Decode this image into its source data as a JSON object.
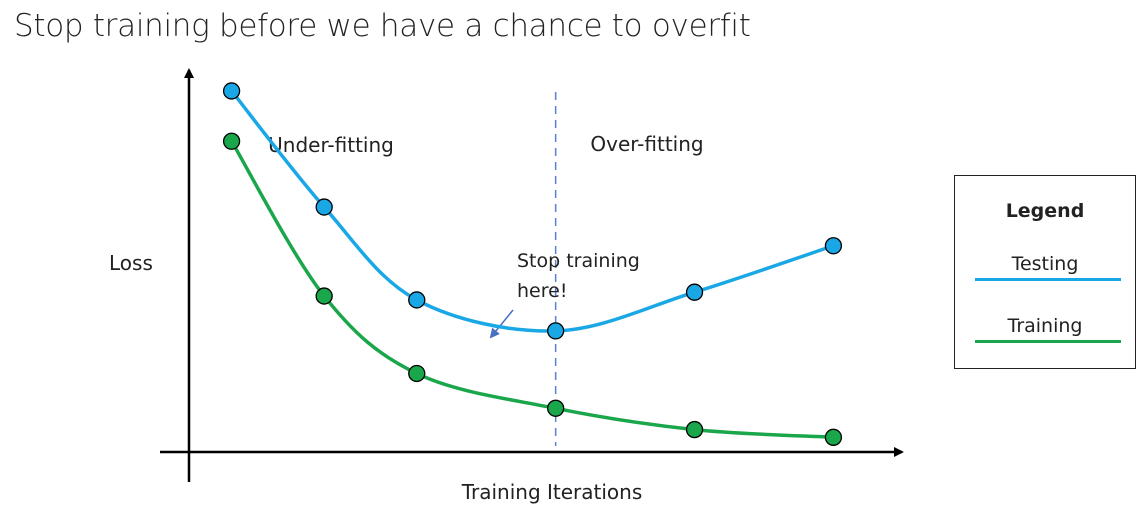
{
  "title": "Stop training before we have a chance to overfit",
  "chart_data": {
    "type": "line",
    "xlabel": "Training Iterations",
    "ylabel": "Loss",
    "series": [
      {
        "name": "Testing",
        "color": "#1aa7e6",
        "x": [
          1,
          2,
          3,
          4.5,
          6,
          7.5
        ],
        "values": [
          0.92,
          0.62,
          0.38,
          0.3,
          0.4,
          0.52
        ]
      },
      {
        "name": "Training",
        "color": "#1aa64a",
        "x": [
          1,
          2,
          3,
          4.5,
          6,
          7.5
        ],
        "values": [
          0.79,
          0.39,
          0.19,
          0.1,
          0.045,
          0.025
        ]
      }
    ],
    "regions": [
      "Under-fitting",
      "Over-fitting"
    ],
    "annotation": {
      "text_line1": "Stop training",
      "text_line2": "here!",
      "x": 4.5
    },
    "stop_x": 4.5,
    "xlim": [
      0,
      8.5
    ],
    "ylim": [
      0,
      1.0
    ],
    "legend": {
      "title": "Legend",
      "position": "right"
    }
  }
}
